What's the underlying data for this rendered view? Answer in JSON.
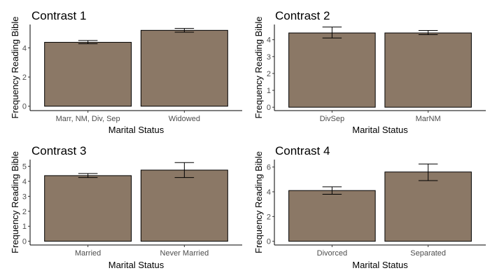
{
  "figure": {
    "background": "#ffffff",
    "bar_color": "#8b7866"
  },
  "chart_data": [
    {
      "type": "bar",
      "title": "Contrast 1",
      "xlabel": "Marital Status",
      "ylabel": "Frequency Reading Bible",
      "categories": [
        "Marr, NM, Div, Sep",
        "Widowed"
      ],
      "values": [
        4.38,
        5.2
      ],
      "errors": [
        [
          4.28,
          4.5
        ],
        [
          5.07,
          5.33
        ]
      ],
      "ylim": [
        -0.3,
        5.6
      ],
      "yticks": [
        0,
        2,
        4
      ],
      "grid": false
    },
    {
      "type": "bar",
      "title": "Contrast 2",
      "xlabel": "Marital Status",
      "ylabel": "Frequency Reading Bible",
      "categories": [
        "DivSep",
        "MarNM"
      ],
      "values": [
        4.4,
        4.4
      ],
      "errors": [
        [
          4.1,
          4.75
        ],
        [
          4.3,
          4.55
        ]
      ],
      "ylim": [
        -0.2,
        4.9
      ],
      "yticks": [
        0,
        1,
        2,
        3,
        4
      ],
      "grid": false
    },
    {
      "type": "bar",
      "title": "Contrast 3",
      "xlabel": "Marital Status",
      "ylabel": "Frequency Reading Bible",
      "categories": [
        "Married",
        "Never Married"
      ],
      "values": [
        4.38,
        4.75
      ],
      "errors": [
        [
          4.25,
          4.52
        ],
        [
          4.25,
          5.25
        ]
      ],
      "ylim": [
        -0.25,
        5.45
      ],
      "yticks": [
        0,
        1,
        2,
        3,
        4,
        5
      ],
      "grid": false
    },
    {
      "type": "bar",
      "title": "Contrast 4",
      "xlabel": "Marital Status",
      "ylabel": "Frequency Reading Bible",
      "categories": [
        "Divorced",
        "Separated"
      ],
      "values": [
        4.1,
        5.6
      ],
      "errors": [
        [
          3.8,
          4.4
        ],
        [
          4.9,
          6.25
        ]
      ],
      "ylim": [
        -0.3,
        6.6
      ],
      "yticks": [
        0,
        2,
        4,
        6
      ],
      "grid": false
    }
  ]
}
